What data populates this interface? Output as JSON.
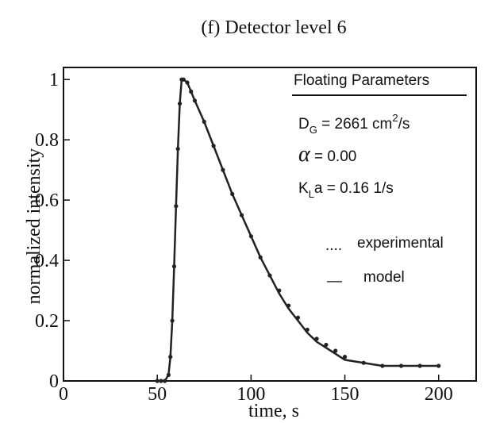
{
  "chart_data": {
    "type": "line",
    "title": "(f) Detector  level 6",
    "x_label": "time, s",
    "y_label": "normalized intensity",
    "x": [
      50,
      52,
      54,
      56,
      57,
      58,
      59,
      60,
      61,
      62,
      63,
      64,
      66,
      68,
      70,
      75,
      80,
      85,
      90,
      95,
      100,
      105,
      110,
      115,
      120,
      125,
      130,
      135,
      140,
      145,
      150,
      160,
      170,
      180,
      190,
      200
    ],
    "series": [
      {
        "name": "experimental",
        "style": "dotted",
        "color": "#222222",
        "values": [
          0,
          0,
          0,
          0.02,
          0.08,
          0.2,
          0.38,
          0.58,
          0.77,
          0.92,
          1.0,
          1.0,
          0.99,
          0.96,
          0.93,
          0.86,
          0.78,
          0.7,
          0.62,
          0.55,
          0.48,
          0.41,
          0.35,
          0.3,
          0.25,
          0.21,
          0.17,
          0.14,
          0.12,
          0.1,
          0.08,
          0.06,
          0.05,
          0.05,
          0.05,
          0.05
        ]
      },
      {
        "name": "model",
        "style": "solid",
        "color": "#222222",
        "values": [
          0,
          0,
          0,
          0.02,
          0.08,
          0.2,
          0.38,
          0.58,
          0.77,
          0.92,
          1.0,
          1.0,
          0.99,
          0.96,
          0.93,
          0.86,
          0.78,
          0.7,
          0.62,
          0.55,
          0.48,
          0.41,
          0.35,
          0.29,
          0.24,
          0.2,
          0.16,
          0.13,
          0.11,
          0.09,
          0.07,
          0.06,
          0.05,
          0.05,
          0.05,
          0.05
        ]
      }
    ],
    "xlim": [
      0,
      220
    ],
    "xticks": [
      0,
      50,
      100,
      150,
      200
    ],
    "ylim": [
      0,
      1.04
    ],
    "yticks": [
      0,
      0.2,
      0.4,
      0.6,
      0.8,
      1
    ],
    "annotation": {
      "heading": "Floating Parameters",
      "dg": {
        "symbol": "D",
        "subscript": "G",
        "text": " = 2661 cm",
        "superscript": "2",
        "unit": "/s"
      },
      "alpha": {
        "symbol": "α",
        "text": "  = 0.00"
      },
      "kla": {
        "symbol": "K",
        "subscript": "L",
        "text": "a = 0.16  1/s"
      }
    },
    "legend": {
      "experimental": "....",
      "model": "—"
    }
  }
}
